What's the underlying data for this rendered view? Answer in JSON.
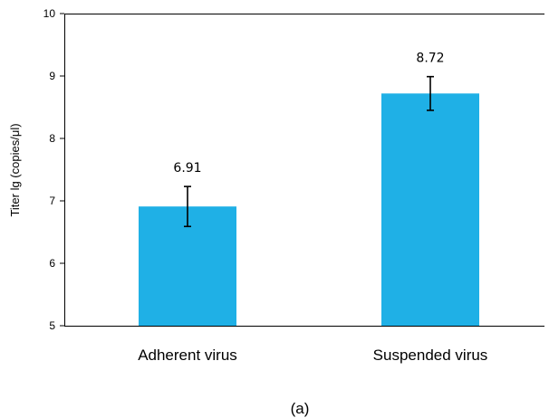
{
  "chart_data": {
    "type": "bar",
    "categories": [
      "Adherent virus",
      "Suspended virus"
    ],
    "values": [
      6.91,
      8.72
    ],
    "error": [
      0.32,
      0.27
    ],
    "data_labels": [
      "6.91",
      "8.72"
    ],
    "title": "",
    "xlabel": "",
    "ylabel": "Titer lg (copies/μl)",
    "ylim": [
      5,
      10
    ],
    "yticks": [
      "5",
      "6",
      "7",
      "8",
      "9",
      "10"
    ],
    "grid": false,
    "bar_color": "#1fb0e6"
  },
  "caption": "(a)"
}
